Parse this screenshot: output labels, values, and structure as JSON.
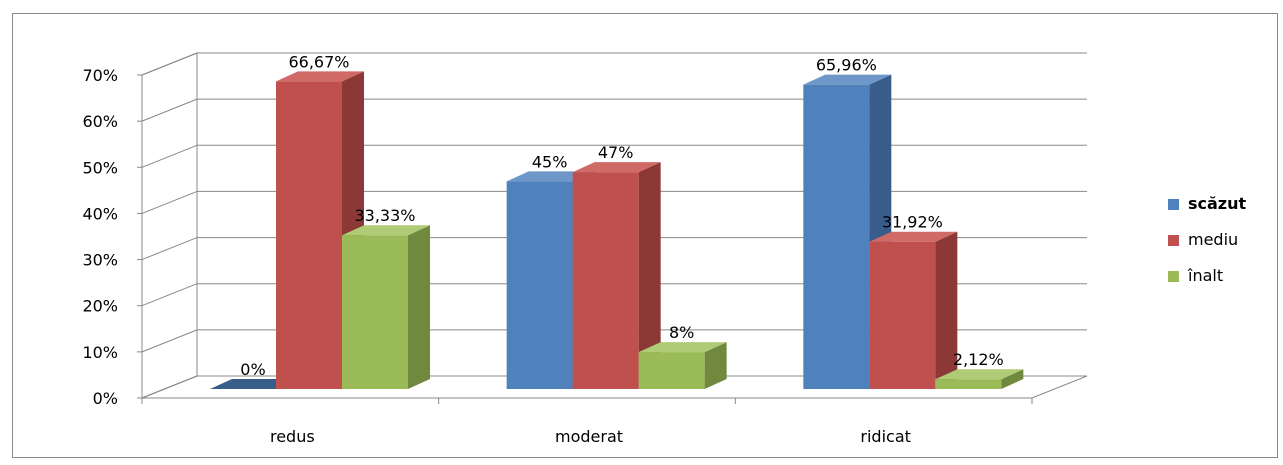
{
  "chart_data": {
    "type": "bar",
    "title": "",
    "xlabel": "",
    "ylabel": "",
    "categories": [
      "redus",
      "moderat",
      "ridicat"
    ],
    "ylim": [
      0,
      70
    ],
    "yticks": [
      0,
      10,
      20,
      30,
      40,
      50,
      60,
      70
    ],
    "ytick_labels": [
      "0%",
      "10%",
      "20%",
      "30%",
      "40%",
      "50%",
      "60%",
      "70%"
    ],
    "grid": true,
    "legend_position": "right",
    "series": [
      {
        "name": "scăzut",
        "color": "#4F81BD",
        "side": "#385D8A",
        "top": "#6E96C8",
        "values": [
          0,
          45,
          65.96
        ],
        "labels": [
          "0%",
          "45%",
          "65,96%"
        ]
      },
      {
        "name": "mediu",
        "color": "#C0504D",
        "side": "#8C3836",
        "top": "#CF6A67",
        "values": [
          66.67,
          47,
          31.92
        ],
        "labels": [
          "66,67%",
          "47%",
          "31,92%"
        ]
      },
      {
        "name": "înalt",
        "color": "#9BBB59",
        "side": "#71893F",
        "top": "#AFCB75",
        "values": [
          33.33,
          8,
          2.12
        ],
        "labels": [
          "33,33%",
          "8%",
          "2,12%"
        ]
      }
    ]
  }
}
